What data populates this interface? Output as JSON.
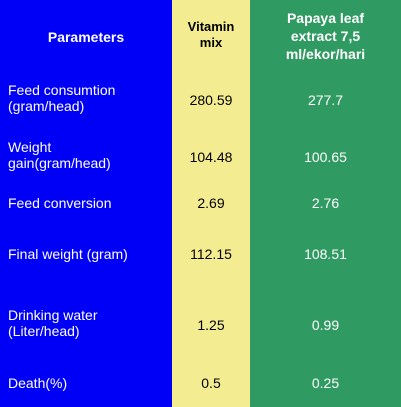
{
  "headers": {
    "parameters": "Parameters",
    "vitamin": [
      "Vitamin",
      "mix"
    ],
    "papaya": [
      "Papaya leaf",
      "extract 7,5",
      "ml/ekor/hari"
    ]
  },
  "rows": [
    {
      "label": [
        "Feed consumtion",
        "(gram/head)"
      ],
      "vitamin": "280.59",
      "papaya": "277.7"
    },
    {
      "label": [
        "Weight",
        "gain(gram/head)"
      ],
      "vitamin": "104.48",
      "papaya": "100.65"
    },
    {
      "label": [
        "Feed conversion"
      ],
      "vitamin": "2.69",
      "papaya": "2.76"
    },
    {
      "label": [
        "Final weight (gram)"
      ],
      "vitamin": "112.15",
      "papaya": "108.51"
    },
    {
      "label": [
        "Drinking water",
        "(Liter/head)"
      ],
      "vitamin": "1.25",
      "papaya": "0.99"
    },
    {
      "label": [
        "Death(%)"
      ],
      "vitamin": "0.5",
      "papaya": "0.25"
    }
  ],
  "colors": {
    "parameters_bg": "#0000f6",
    "vitamin_bg": "#f4ec90",
    "papaya_bg": "#2f9a61"
  }
}
